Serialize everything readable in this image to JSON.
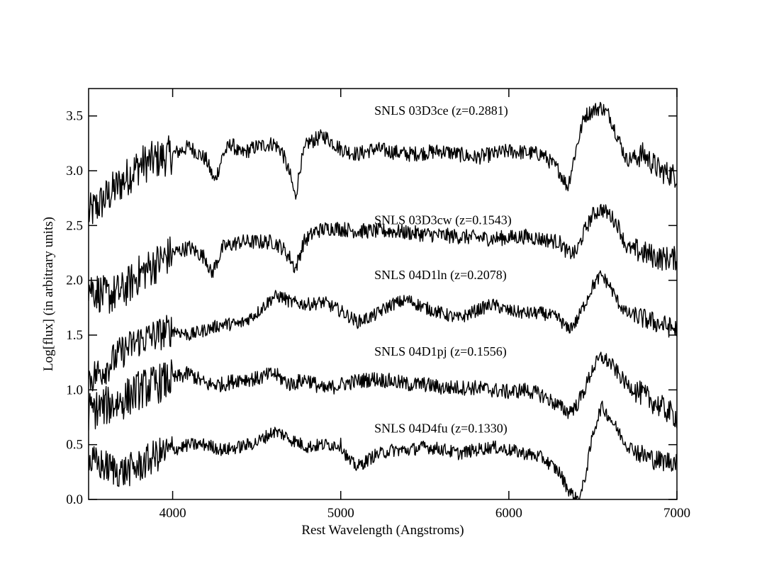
{
  "chart_data": {
    "type": "line",
    "xlabel": "Rest Wavelength (Angstroms)",
    "ylabel": "Log[flux] (in arbitrary units)",
    "xlim": [
      3500,
      7000
    ],
    "ylim": [
      0.0,
      3.75
    ],
    "x_ticks": [
      4000,
      5000,
      6000,
      7000
    ],
    "x_tick_labels": [
      "4000",
      "5000",
      "6000",
      "7000"
    ],
    "y_ticks": [
      0.0,
      0.5,
      1.0,
      1.5,
      2.0,
      2.5,
      3.0,
      3.5
    ],
    "y_tick_labels": [
      "0.0",
      "0.5",
      "1.0",
      "1.5",
      "2.0",
      "2.5",
      "3.0",
      "3.5"
    ],
    "grid": false,
    "line_color": "#000000",
    "series": [
      {
        "name": "SNLS 03D3ce (z=0.2881)",
        "label_anchor": [
          5200,
          3.55
        ],
        "x": [
          3500,
          3600,
          3700,
          3800,
          3900,
          4000,
          4100,
          4200,
          4250,
          4300,
          4350,
          4400,
          4500,
          4600,
          4650,
          4700,
          4730,
          4760,
          4800,
          4900,
          5000,
          5100,
          5200,
          5400,
          5600,
          5800,
          6000,
          6200,
          6300,
          6350,
          6400,
          6450,
          6500,
          6550,
          6600,
          6650,
          6700,
          6800,
          6900,
          7000
        ],
        "y": [
          2.6,
          2.75,
          2.9,
          3.05,
          3.1,
          3.15,
          3.22,
          3.1,
          2.9,
          3.15,
          3.25,
          3.15,
          3.22,
          3.25,
          3.18,
          2.95,
          2.75,
          3.05,
          3.25,
          3.32,
          3.2,
          3.15,
          3.2,
          3.15,
          3.18,
          3.12,
          3.18,
          3.15,
          3.0,
          2.85,
          3.2,
          3.5,
          3.55,
          3.58,
          3.5,
          3.3,
          3.1,
          3.15,
          3.0,
          2.95
        ],
        "noise": 0.07
      },
      {
        "name": "SNLS 03D3cw (z=0.1543)",
        "label_anchor": [
          5200,
          2.55
        ],
        "x": [
          3500,
          3600,
          3700,
          3800,
          3900,
          4000,
          4100,
          4200,
          4230,
          4300,
          4400,
          4500,
          4600,
          4650,
          4700,
          4730,
          4780,
          4850,
          4950,
          5100,
          5300,
          5500,
          5700,
          5900,
          6100,
          6300,
          6350,
          6400,
          6450,
          6500,
          6550,
          6600,
          6650,
          6700,
          6800,
          6900,
          7000
        ],
        "y": [
          1.95,
          1.85,
          1.9,
          2.05,
          2.15,
          2.25,
          2.3,
          2.2,
          2.05,
          2.3,
          2.35,
          2.35,
          2.35,
          2.3,
          2.2,
          2.1,
          2.35,
          2.45,
          2.48,
          2.45,
          2.45,
          2.42,
          2.4,
          2.38,
          2.4,
          2.35,
          2.25,
          2.25,
          2.45,
          2.6,
          2.65,
          2.6,
          2.5,
          2.3,
          2.25,
          2.2,
          2.2
        ],
        "noise": 0.07
      },
      {
        "name": "SNLS 04D1ln (z=0.2078)",
        "label_anchor": [
          5200,
          2.05
        ],
        "x": [
          3500,
          3600,
          3700,
          3800,
          3900,
          4000,
          4100,
          4200,
          4300,
          4400,
          4500,
          4600,
          4650,
          4700,
          4800,
          4900,
          5000,
          5100,
          5200,
          5300,
          5400,
          5500,
          5600,
          5700,
          5800,
          5900,
          6000,
          6100,
          6200,
          6300,
          6350,
          6400,
          6450,
          6500,
          6550,
          6600,
          6650,
          6700,
          6800,
          6900,
          7000
        ],
        "y": [
          1.1,
          1.2,
          1.35,
          1.45,
          1.5,
          1.55,
          1.5,
          1.55,
          1.6,
          1.6,
          1.7,
          1.85,
          1.85,
          1.8,
          1.78,
          1.8,
          1.72,
          1.62,
          1.68,
          1.78,
          1.82,
          1.75,
          1.7,
          1.65,
          1.72,
          1.78,
          1.72,
          1.7,
          1.7,
          1.65,
          1.55,
          1.62,
          1.78,
          1.95,
          2.05,
          1.95,
          1.8,
          1.7,
          1.65,
          1.6,
          1.55
        ],
        "noise": 0.06
      },
      {
        "name": "SNLS 04D1pj (z=0.1556)",
        "label_anchor": [
          5200,
          1.35
        ],
        "x": [
          3500,
          3600,
          3700,
          3800,
          3900,
          4000,
          4100,
          4200,
          4300,
          4400,
          4500,
          4600,
          4700,
          4800,
          4900,
          5000,
          5100,
          5200,
          5300,
          5400,
          5500,
          5600,
          5700,
          5800,
          5900,
          6000,
          6100,
          6200,
          6300,
          6350,
          6400,
          6450,
          6500,
          6550,
          6600,
          6700,
          6800,
          6900,
          7000
        ],
        "y": [
          0.8,
          0.85,
          0.9,
          1.0,
          1.05,
          1.1,
          1.15,
          1.05,
          1.05,
          1.1,
          1.1,
          1.15,
          1.05,
          1.1,
          1.0,
          1.05,
          1.08,
          1.1,
          1.08,
          1.05,
          1.05,
          1.02,
          1.02,
          1.02,
          1.0,
          0.98,
          1.0,
          0.95,
          0.85,
          0.8,
          0.85,
          1.0,
          1.2,
          1.3,
          1.25,
          1.05,
          0.95,
          0.85,
          0.75
        ],
        "noise": 0.07
      },
      {
        "name": "SNLS 04D4fu (z=0.1330)",
        "label_anchor": [
          5200,
          0.65
        ],
        "x": [
          3500,
          3600,
          3700,
          3800,
          3900,
          4000,
          4100,
          4200,
          4300,
          4400,
          4500,
          4600,
          4650,
          4700,
          4800,
          4900,
          5000,
          5050,
          5100,
          5200,
          5300,
          5400,
          5500,
          5600,
          5700,
          5800,
          5900,
          6000,
          6100,
          6200,
          6300,
          6350,
          6400,
          6430,
          6460,
          6500,
          6550,
          6600,
          6700,
          6800,
          6900,
          7000
        ],
        "y": [
          0.35,
          0.3,
          0.25,
          0.3,
          0.4,
          0.45,
          0.5,
          0.5,
          0.45,
          0.48,
          0.52,
          0.62,
          0.6,
          0.55,
          0.48,
          0.5,
          0.5,
          0.35,
          0.3,
          0.4,
          0.45,
          0.45,
          0.48,
          0.46,
          0.42,
          0.45,
          0.48,
          0.45,
          0.42,
          0.38,
          0.25,
          0.1,
          0.0,
          0.05,
          0.25,
          0.6,
          0.85,
          0.75,
          0.5,
          0.4,
          0.35,
          0.35
        ],
        "noise": 0.06
      }
    ]
  }
}
